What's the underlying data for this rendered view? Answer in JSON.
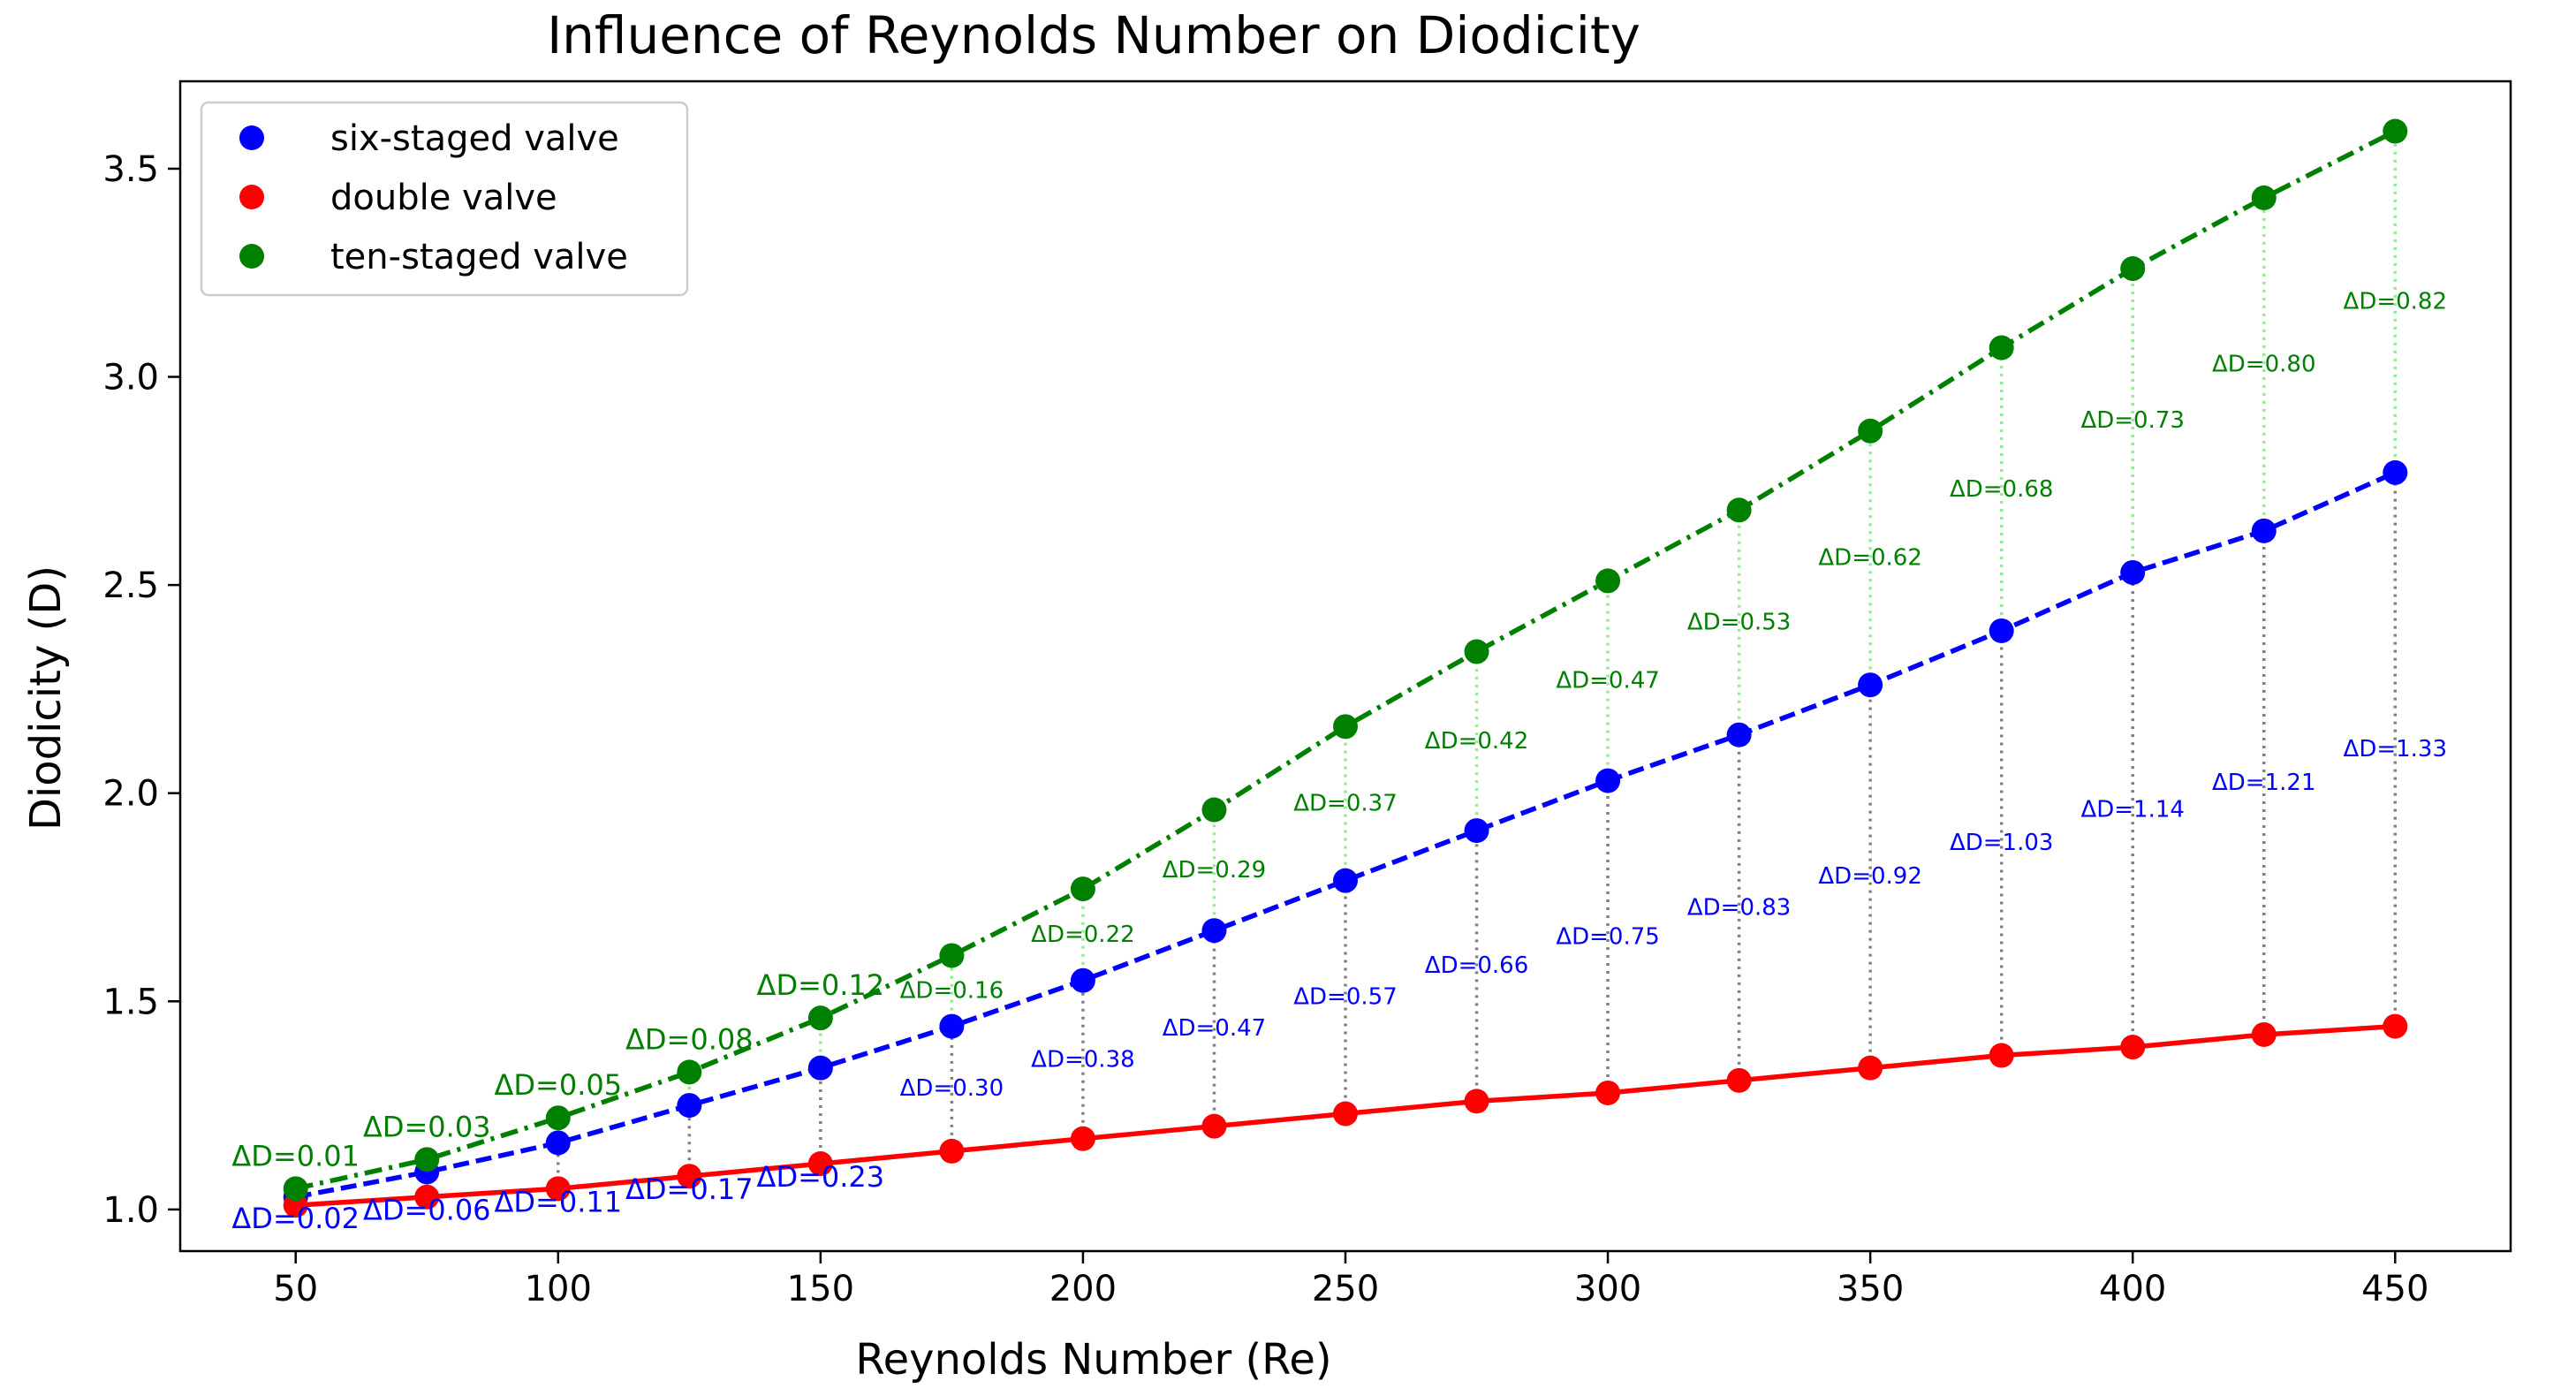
{
  "chart_data": {
    "type": "scatter",
    "title": "Influence of Reynolds Number on Diodicity",
    "xlabel": "Reynolds Number (Re)",
    "ylabel": "Diodicity (D)",
    "xlim": [
      28,
      472
    ],
    "ylim": [
      0.9,
      3.71
    ],
    "xticks": [
      50,
      100,
      150,
      200,
      250,
      300,
      350,
      400,
      450
    ],
    "yticks": [
      1.0,
      1.5,
      2.0,
      2.5,
      3.0,
      3.5
    ],
    "x": [
      50,
      75,
      100,
      125,
      150,
      175,
      200,
      225,
      250,
      275,
      300,
      325,
      350,
      375,
      400,
      425,
      450
    ],
    "legend_position": "top-left",
    "series": [
      {
        "name": "six-staged valve",
        "color": "#0000ff",
        "line_style": "dashed",
        "values": [
          1.03,
          1.09,
          1.16,
          1.25,
          1.34,
          1.44,
          1.55,
          1.67,
          1.79,
          1.91,
          2.03,
          2.14,
          2.26,
          2.39,
          2.53,
          2.63,
          2.77
        ]
      },
      {
        "name": "double valve",
        "color": "#ff0000",
        "line_style": "solid",
        "values": [
          1.01,
          1.03,
          1.05,
          1.08,
          1.11,
          1.14,
          1.17,
          1.2,
          1.23,
          1.26,
          1.28,
          1.31,
          1.34,
          1.37,
          1.39,
          1.42,
          1.44
        ]
      },
      {
        "name": "ten-staged valve",
        "color": "#008000",
        "line_style": "dashdot",
        "values": [
          1.05,
          1.12,
          1.22,
          1.33,
          1.46,
          1.61,
          1.77,
          1.96,
          2.16,
          2.34,
          2.51,
          2.68,
          2.87,
          3.07,
          3.26,
          3.43,
          3.59
        ]
      }
    ],
    "annotations_six_vs_double": [
      "ΔD=0.02",
      "ΔD=0.06",
      "ΔD=0.11",
      "ΔD=0.17",
      "ΔD=0.23",
      "ΔD=0.30",
      "ΔD=0.38",
      "ΔD=0.47",
      "ΔD=0.57",
      "ΔD=0.66",
      "ΔD=0.75",
      "ΔD=0.83",
      "ΔD=0.92",
      "ΔD=1.03",
      "ΔD=1.14",
      "ΔD=1.21",
      "ΔD=1.33"
    ],
    "annotations_ten_vs_six": [
      "ΔD=0.01",
      "ΔD=0.03",
      "ΔD=0.05",
      "ΔD=0.08",
      "ΔD=0.12",
      "ΔD=0.16",
      "ΔD=0.22",
      "ΔD=0.29",
      "ΔD=0.37",
      "ΔD=0.42",
      "ΔD=0.47",
      "ΔD=0.53",
      "ΔD=0.62",
      "ΔD=0.68",
      "ΔD=0.73",
      "ΔD=0.80",
      "ΔD=0.82"
    ]
  }
}
